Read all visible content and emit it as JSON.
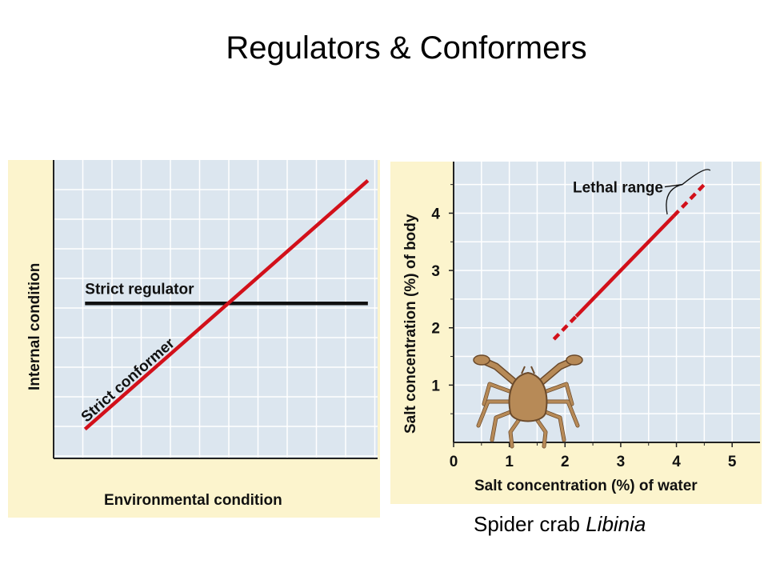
{
  "title": "Regulators & Conformers",
  "caption": {
    "text": "Spider crab",
    "species": "Libinia"
  },
  "colors": {
    "panel_bg": "#fcf4cd",
    "plot_bg": "#dce6ef",
    "grid": "#ffffff",
    "conformer_line": "#d2101a",
    "regulator_line": "#111111",
    "crab_body": "#b78a57"
  },
  "chart_data": [
    {
      "type": "line",
      "xlabel": "Environmental condition",
      "ylabel": "Internal condition",
      "grid": true,
      "series": [
        {
          "name": "Strict regulator",
          "x": [
            0.1,
            1.0
          ],
          "y": [
            0.53,
            0.53
          ]
        },
        {
          "name": "Strict conformer",
          "x": [
            0.1,
            1.0
          ],
          "y": [
            0.1,
            0.95
          ]
        }
      ]
    },
    {
      "type": "line",
      "xlabel": "Salt concentration (%) of water",
      "ylabel": "Salt concentration (%) of body",
      "xlim": [
        0,
        5.5
      ],
      "ylim": [
        0,
        4.9
      ],
      "xticks": [
        0,
        1,
        2,
        3,
        4,
        5
      ],
      "yticks": [
        1,
        2,
        3,
        4
      ],
      "grid": true,
      "series": [
        {
          "name": "Spider crab Libinia",
          "style": "dashed",
          "x": [
            1.8,
            2.2
          ],
          "y": [
            1.8,
            2.2
          ]
        },
        {
          "name": "Spider crab Libinia",
          "style": "solid",
          "x": [
            2.2,
            3.95
          ],
          "y": [
            2.2,
            3.95
          ]
        },
        {
          "name": "Spider crab Libinia",
          "style": "dashed",
          "x": [
            3.95,
            4.55
          ],
          "y": [
            3.95,
            4.55
          ]
        }
      ],
      "annotations": [
        {
          "text": "Lethal range"
        }
      ]
    }
  ]
}
